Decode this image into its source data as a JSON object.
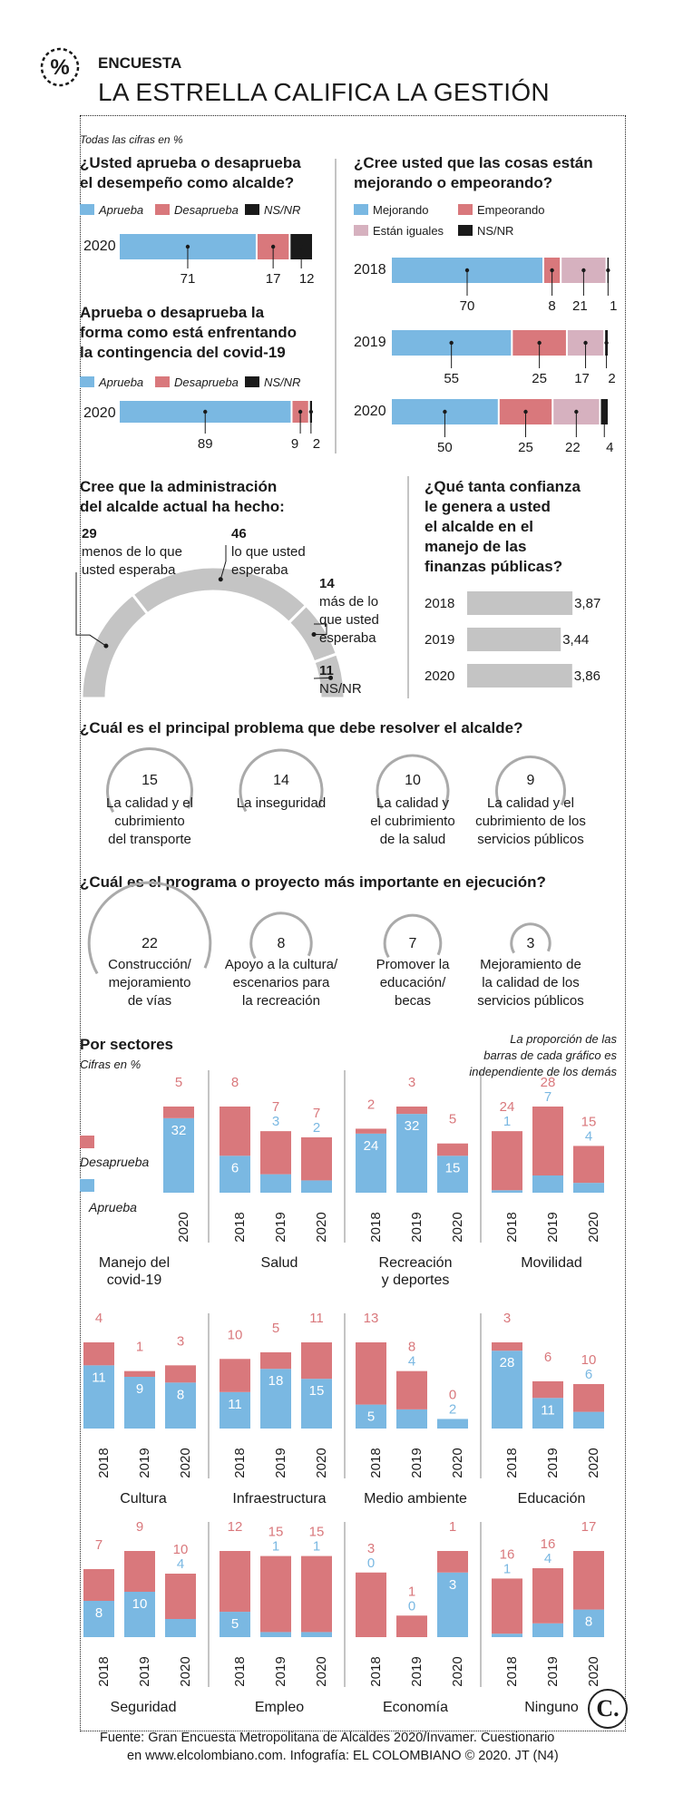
{
  "header": {
    "kicker": "ENCUESTA",
    "title": "LA ESTRELLA CALIFICA LA GESTIÓN"
  },
  "colors": {
    "approve": "#7ab8e2",
    "disapprove": "#d9787c",
    "nsnr": "#1a1a1a",
    "equal": "#d6b1bf",
    "gray": "#c4c4c4",
    "dark": "#1a1a1a"
  },
  "note_top": "Todas las cifras en %",
  "approval": {
    "title_lines": [
      "¿Usted aprueba o desaprueba",
      "el desempeño como alcalde?"
    ],
    "legend": [
      "Aprueba",
      "Desaprueba",
      "NS/NR"
    ],
    "rows": [
      {
        "year": "2020",
        "values": [
          71,
          17,
          12
        ]
      }
    ]
  },
  "covid": {
    "title_lines": [
      "Aprueba o desaprueba la",
      "forma como está enfrentando",
      "la contingencia del covid-19"
    ],
    "legend": [
      "Aprueba",
      "Desaprueba",
      "NS/NR"
    ],
    "rows": [
      {
        "year": "2020",
        "values": [
          89,
          9,
          2
        ]
      }
    ]
  },
  "trend": {
    "title_lines": [
      "¿Cree usted que las cosas están",
      "mejorando o empeorando?"
    ],
    "legend": [
      "Mejorando",
      "Empeorando",
      "Están iguales",
      "NS/NR"
    ],
    "rows": [
      {
        "year": "2018",
        "values": [
          70,
          8,
          21,
          1
        ]
      },
      {
        "year": "2019",
        "values": [
          55,
          25,
          17,
          2
        ]
      },
      {
        "year": "2020",
        "values": [
          50,
          25,
          22,
          4
        ]
      }
    ]
  },
  "expectations": {
    "title_lines": [
      "Cree que la administración",
      "del alcalde actual ha hecho:"
    ],
    "items": [
      {
        "value": "29",
        "lines": [
          "menos de lo que",
          "usted esperaba"
        ]
      },
      {
        "value": "46",
        "lines": [
          "lo que usted",
          "esperaba"
        ]
      },
      {
        "value": "14",
        "lines": [
          "más de lo",
          "que usted",
          "esperaba"
        ]
      },
      {
        "value": "11",
        "lines": [
          "NS/NR"
        ]
      }
    ]
  },
  "confidence": {
    "title_lines": [
      "¿Qué tanta confianza",
      "le genera a usted",
      "el alcalde en el",
      "manejo de las",
      "finanzas públicas?"
    ],
    "rows": [
      {
        "year": "2018",
        "value": 3.87,
        "label": "3,87"
      },
      {
        "year": "2019",
        "value": 3.44,
        "label": "3,44"
      },
      {
        "year": "2020",
        "value": 3.86,
        "label": "3,86"
      }
    ]
  },
  "problems": {
    "title": "¿Cuál es el principal problema que debe resolver el alcalde?",
    "items": [
      {
        "value": 15,
        "lines": [
          "La calidad y el",
          "cubrimiento",
          "del transporte"
        ]
      },
      {
        "value": 14,
        "lines": [
          "La inseguridad"
        ]
      },
      {
        "value": 10,
        "lines": [
          "La calidad y",
          "el cubrimiento",
          "de la salud"
        ]
      },
      {
        "value": 9,
        "lines": [
          "La calidad y el",
          "cubrimiento de los",
          "servicios públicos"
        ]
      }
    ]
  },
  "programs": {
    "title": "¿Cuál es el programa o proyecto más importante en ejecución?",
    "items": [
      {
        "value": 22,
        "lines": [
          "Construcción/",
          "mejoramiento",
          "de vías"
        ]
      },
      {
        "value": 8,
        "lines": [
          "Apoyo a la cultura/",
          "escenarios para",
          "la recreación"
        ]
      },
      {
        "value": 7,
        "lines": [
          "Promover la",
          "educación/",
          "becas"
        ]
      },
      {
        "value": 3,
        "lines": [
          "Mejoramiento de",
          "la calidad de los",
          "servicios públicos"
        ]
      }
    ]
  },
  "sectors": {
    "title": "Por sectores",
    "subtitle": "Cifras en %",
    "note_lines": [
      "La proporción de las",
      "barras de cada gráfico es",
      "independiente de los demás"
    ],
    "legend": [
      "Desaprueba",
      "Aprueba"
    ]
  },
  "chart_data": [
    {
      "type": "bar",
      "title": "Manejo del covid-19",
      "categories": [
        "2020"
      ],
      "series": [
        {
          "name": "Aprueba",
          "values": [
            32
          ]
        },
        {
          "name": "Desaprueba",
          "values": [
            5
          ]
        }
      ]
    },
    {
      "type": "bar",
      "title": "Salud",
      "categories": [
        "2018",
        "2019",
        "2020"
      ],
      "series": [
        {
          "name": "Aprueba",
          "values": [
            6,
            3,
            2
          ]
        },
        {
          "name": "Desaprueba",
          "values": [
            8,
            7,
            7
          ]
        }
      ]
    },
    {
      "type": "bar",
      "title": "Recreación y deportes",
      "categories": [
        "2018",
        "2019",
        "2020"
      ],
      "series": [
        {
          "name": "Aprueba",
          "values": [
            24,
            32,
            15
          ]
        },
        {
          "name": "Desaprueba",
          "values": [
            2,
            3,
            5
          ]
        }
      ]
    },
    {
      "type": "bar",
      "title": "Movilidad",
      "categories": [
        "2018",
        "2019",
        "2020"
      ],
      "series": [
        {
          "name": "Aprueba",
          "values": [
            1,
            7,
            4
          ]
        },
        {
          "name": "Desaprueba",
          "values": [
            24,
            28,
            15
          ]
        }
      ]
    },
    {
      "type": "bar",
      "title": "Cultura",
      "categories": [
        "2018",
        "2019",
        "2020"
      ],
      "series": [
        {
          "name": "Aprueba",
          "values": [
            11,
            9,
            8
          ]
        },
        {
          "name": "Desaprueba",
          "values": [
            4,
            1,
            3
          ]
        }
      ]
    },
    {
      "type": "bar",
      "title": "Infraestructura",
      "categories": [
        "2018",
        "2019",
        "2020"
      ],
      "series": [
        {
          "name": "Aprueba",
          "values": [
            11,
            18,
            15
          ]
        },
        {
          "name": "Desaprueba",
          "values": [
            10,
            5,
            11
          ]
        }
      ]
    },
    {
      "type": "bar",
      "title": "Medio ambiente",
      "categories": [
        "2018",
        "2019",
        "2020"
      ],
      "series": [
        {
          "name": "Aprueba",
          "values": [
            5,
            4,
            2
          ]
        },
        {
          "name": "Desaprueba",
          "values": [
            13,
            8,
            0
          ]
        }
      ]
    },
    {
      "type": "bar",
      "title": "Educación",
      "categories": [
        "2018",
        "2019",
        "2020"
      ],
      "series": [
        {
          "name": "Aprueba",
          "values": [
            28,
            11,
            6
          ]
        },
        {
          "name": "Desaprueba",
          "values": [
            3,
            6,
            10
          ]
        }
      ]
    },
    {
      "type": "bar",
      "title": "Seguridad",
      "categories": [
        "2018",
        "2019",
        "2020"
      ],
      "series": [
        {
          "name": "Aprueba",
          "values": [
            8,
            10,
            4
          ]
        },
        {
          "name": "Desaprueba",
          "values": [
            7,
            9,
            10
          ]
        }
      ]
    },
    {
      "type": "bar",
      "title": "Empleo",
      "categories": [
        "2018",
        "2019",
        "2020"
      ],
      "series": [
        {
          "name": "Aprueba",
          "values": [
            5,
            1,
            1
          ]
        },
        {
          "name": "Desaprueba",
          "values": [
            12,
            15,
            15
          ]
        }
      ]
    },
    {
      "type": "bar",
      "title": "Economía",
      "categories": [
        "2018",
        "2019",
        "2020"
      ],
      "series": [
        {
          "name": "Aprueba",
          "values": [
            0,
            0,
            3
          ]
        },
        {
          "name": "Desaprueba",
          "values": [
            3,
            1,
            1
          ]
        }
      ]
    },
    {
      "type": "bar",
      "title": "Ninguno",
      "categories": [
        "2018",
        "2019",
        "2020"
      ],
      "series": [
        {
          "name": "Aprueba",
          "values": [
            1,
            4,
            8
          ]
        },
        {
          "name": "Desaprueba",
          "values": [
            16,
            16,
            17
          ]
        }
      ]
    }
  ],
  "footer": {
    "line1": "Fuente: Gran Encuesta Metropolitana de Alcaldes 2020/Invamer. Cuestionario",
    "line2": "en www.elcolombiano.com. Infografía: EL COLOMBIANO © 2020. JT (N4)",
    "logo": "C."
  }
}
